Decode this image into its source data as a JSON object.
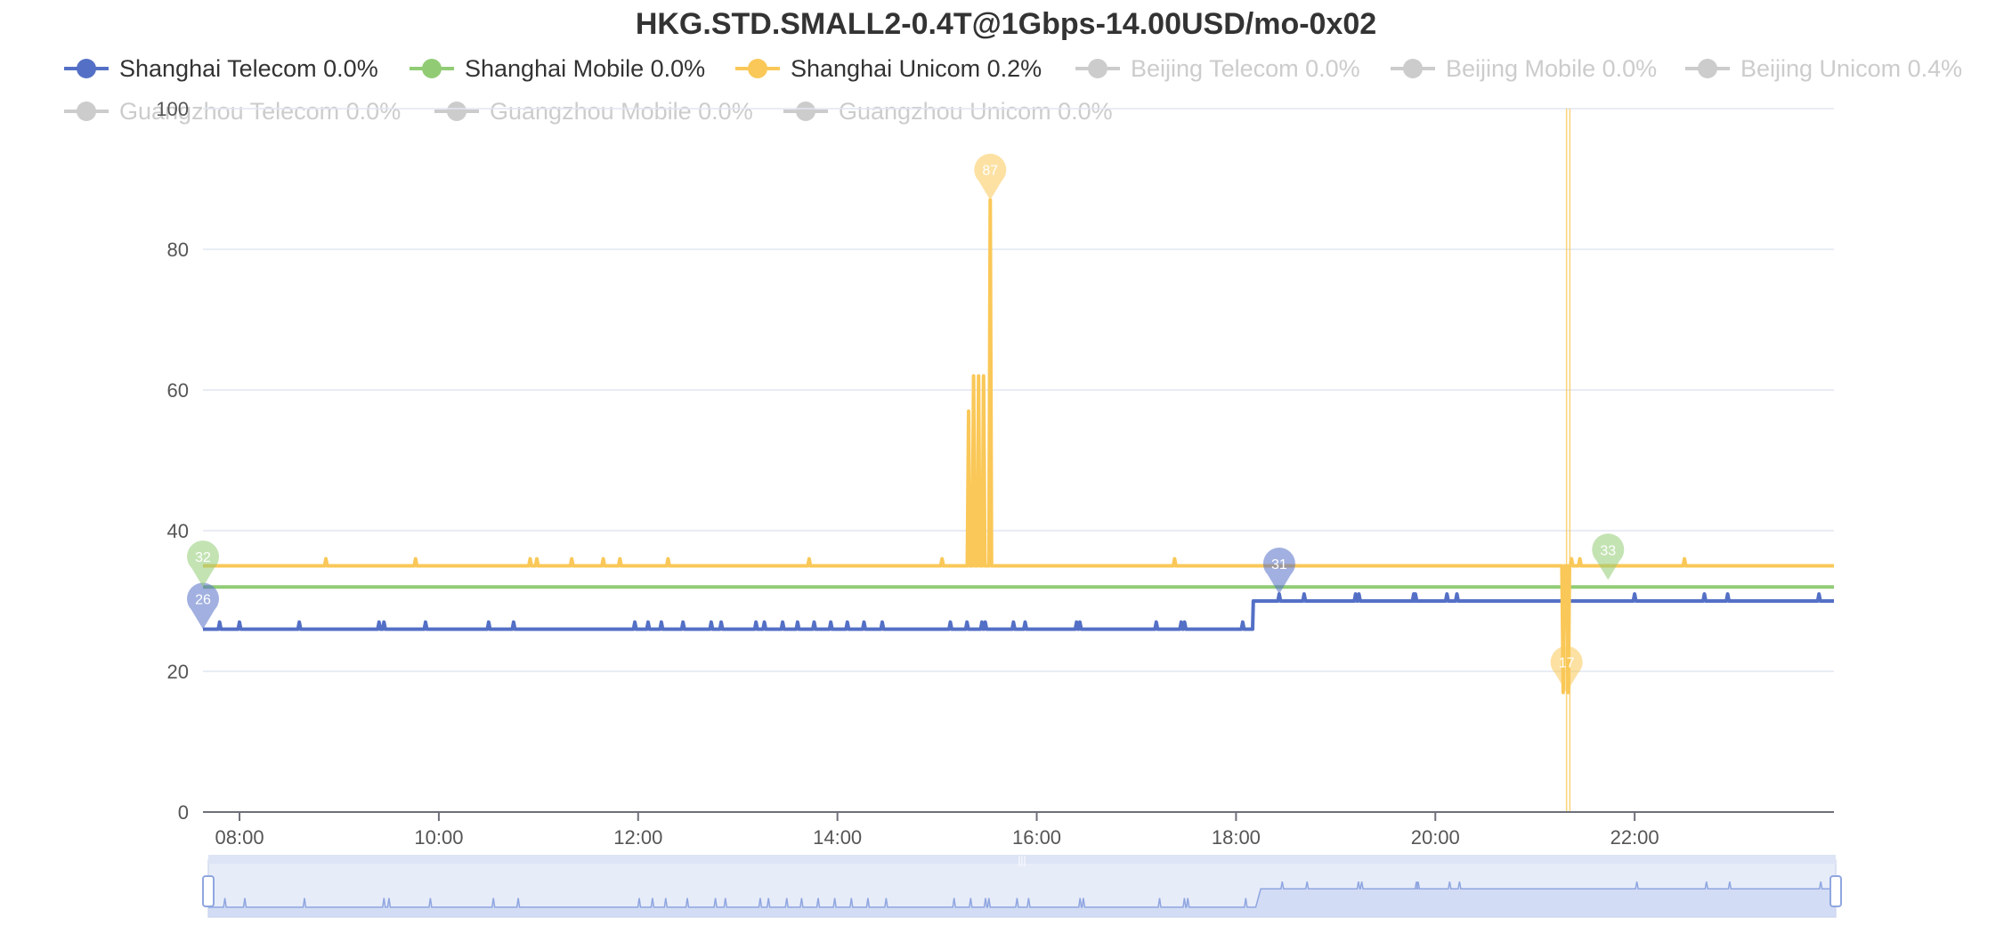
{
  "chart_data": {
    "type": "line",
    "title": "HKG.STD.SMALL2-0.4T@1Gbps-14.00USD/mo-0x02",
    "xlabel": "",
    "ylabel": "",
    "x_ticks": [
      "08:00",
      "10:00",
      "12:00",
      "14:00",
      "16:00",
      "18:00",
      "20:00",
      "22:00"
    ],
    "y_ticks": [
      0,
      20,
      40,
      60,
      80,
      100
    ],
    "xlim": [
      "07:38",
      "24:00"
    ],
    "ylim": [
      0,
      100
    ],
    "grid": "horizontal",
    "legend_position": "top",
    "series": [
      {
        "name": "Shanghai Telecom 0.0%",
        "color": "#5470c6",
        "visible": true,
        "baseline_segments": [
          {
            "from": "07:38",
            "to": "18:10",
            "value": 26
          },
          {
            "from": "18:10",
            "to": "24:00",
            "value": 30
          }
        ],
        "spike_value_first_segment": 27,
        "spike_value_second_segment": 31,
        "spike_times": [
          "07:48",
          "08:00",
          "08:36",
          "09:24",
          "09:27",
          "09:52",
          "10:30",
          "10:45",
          "11:58",
          "12:06",
          "12:14",
          "12:27",
          "12:44",
          "12:50",
          "13:11",
          "13:16",
          "13:27",
          "13:36",
          "13:46",
          "13:56",
          "14:06",
          "14:16",
          "14:27",
          "15:08",
          "15:18",
          "15:27",
          "15:29",
          "15:46",
          "15:53",
          "16:24",
          "16:26",
          "17:12",
          "17:27",
          "17:29",
          "18:04",
          "18:26",
          "18:41",
          "19:12",
          "19:14",
          "19:47",
          "19:48",
          "20:07",
          "20:13",
          "22:00",
          "22:42",
          "22:56",
          "23:51"
        ],
        "min_marker": {
          "time": "07:38",
          "value": 26
        },
        "max_marker": {
          "time": "18:26",
          "value": 31
        }
      },
      {
        "name": "Shanghai Mobile 0.0%",
        "color": "#91cc75",
        "visible": true,
        "baseline_segments": [
          {
            "from": "07:38",
            "to": "24:00",
            "value": 32
          }
        ],
        "spike_times": [],
        "min_marker": {
          "time": "07:38",
          "value": 32
        },
        "max_marker": {
          "time": "21:44",
          "value": 33
        }
      },
      {
        "name": "Shanghai Unicom 0.2%",
        "color": "#fac858",
        "visible": true,
        "baseline_segments": [
          {
            "from": "07:38",
            "to": "24:00",
            "value": 35
          }
        ],
        "small_spike_value": 36,
        "small_spike_times": [
          "08:52",
          "09:46",
          "10:55",
          "10:59",
          "11:20",
          "11:39",
          "11:49",
          "12:18",
          "13:43",
          "15:03",
          "17:23",
          "21:22",
          "21:27",
          "22:30"
        ],
        "large_events": [
          {
            "time": "15:19",
            "value": 57
          },
          {
            "time": "15:22",
            "value": 62
          },
          {
            "time": "15:25",
            "value": 62
          },
          {
            "time": "15:28",
            "value": 62
          },
          {
            "time": "15:32",
            "value": 87
          },
          {
            "time": "21:17",
            "value": 17
          },
          {
            "time": "21:20",
            "value": 17
          }
        ],
        "min_marker": {
          "time": "21:19",
          "value": 17
        },
        "max_marker": {
          "time": "15:32",
          "value": 87
        }
      },
      {
        "name": "Beijing Telecom 0.0%",
        "color": "#cccccc",
        "visible": false
      },
      {
        "name": "Beijing Mobile 0.0%",
        "color": "#cccccc",
        "visible": false
      },
      {
        "name": "Beijing Unicom 0.4%",
        "color": "#cccccc",
        "visible": false
      },
      {
        "name": "Guangzhou Telecom 0.0%",
        "color": "#cccccc",
        "visible": false
      },
      {
        "name": "Guangzhou Mobile 0.0%",
        "color": "#cccccc",
        "visible": false
      },
      {
        "name": "Guangzhou Unicom 0.0%",
        "color": "#cccccc",
        "visible": false
      }
    ],
    "vertical_marker_times": [
      "21:19",
      "21:21"
    ],
    "data_zoom": {
      "start_fraction": 0.0,
      "end_fraction": 1.0,
      "preview_series": "Shanghai Telecom 0.0%"
    }
  }
}
